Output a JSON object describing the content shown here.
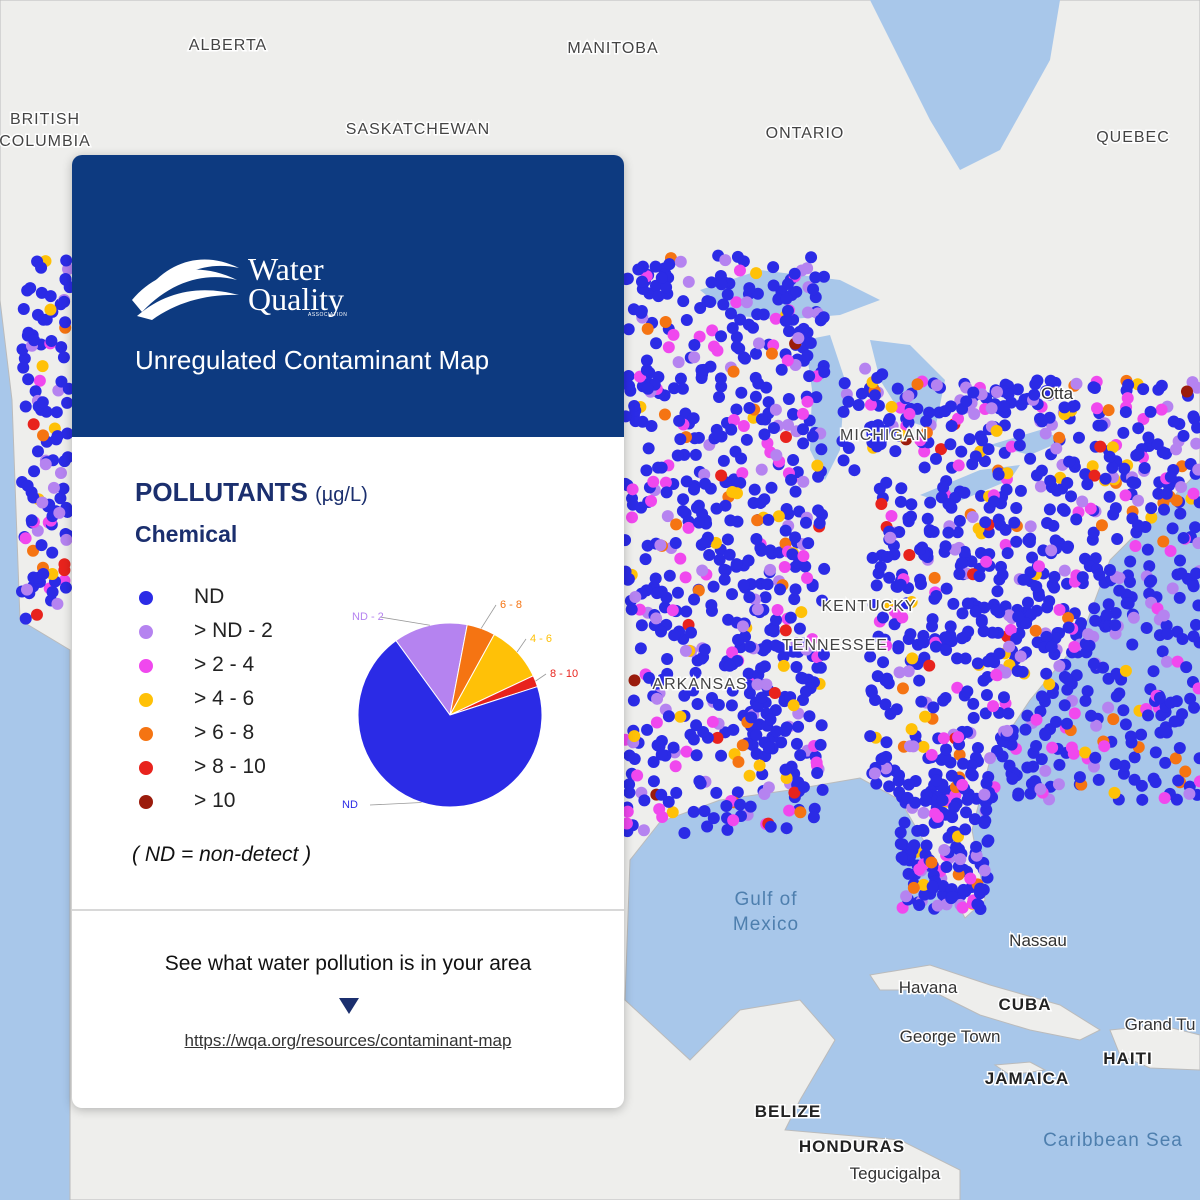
{
  "map": {
    "regions": [
      "ALBERTA",
      "MANITOBA",
      "BRITISH",
      "COLUMBIA",
      "SASKATCHEWAN",
      "ONTARIO",
      "QUEBEC",
      "MICHIGAN",
      "KENTUCKY",
      "TENNESSEE",
      "ARKANSAS",
      "CUBA",
      "HAITI",
      "JAMAICA",
      "BELIZE",
      "HONDURAS"
    ],
    "waters": [
      "Gulf of",
      "Mexico",
      "Caribbean Sea"
    ],
    "cities": [
      "Otta",
      "Nassau",
      "Havana",
      "George Town",
      "Grand Tu",
      "Tegucigalpa"
    ]
  },
  "card": {
    "logo": {
      "line1": "Water",
      "line2": "Quality",
      "line3": "ASSOCIATION"
    },
    "title": "Unregulated Contaminant Map",
    "heading": "POLLUTANTS",
    "unit": "(µg/L)",
    "subheading": "Chemical",
    "legend": [
      {
        "label": "ND",
        "color": "#2b2be6"
      },
      {
        "label": "> ND - 2",
        "color": "#b583f0"
      },
      {
        "label": "> 2 - 4",
        "color": "#f048ee"
      },
      {
        "label": "> 4 - 6",
        "color": "#ffc107"
      },
      {
        "label": "> 6 - 8",
        "color": "#f57412"
      },
      {
        "label": "> 8 - 10",
        "color": "#e8231d"
      },
      {
        "label": "> 10",
        "color": "#9b1c0c"
      }
    ],
    "note": "( ND = non-detect )",
    "cta": "See what water pollution is in your area",
    "link": "https://wqa.org/resources/contaminant-map"
  },
  "chart_data": {
    "type": "pie",
    "categories": [
      "ND - 2",
      "6 - 8",
      "4 - 6",
      "8 - 10",
      "ND"
    ],
    "values": [
      13,
      5,
      10,
      2,
      70
    ],
    "colors": [
      "#b583f0",
      "#f57412",
      "#ffc107",
      "#e8231d",
      "#2b2be6"
    ]
  }
}
